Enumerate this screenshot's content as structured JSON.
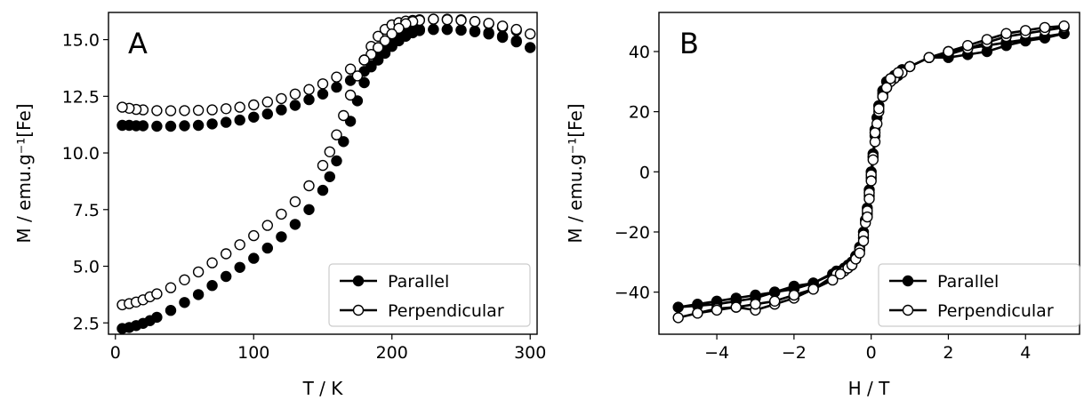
{
  "chart_data": [
    {
      "type": "scatter",
      "panel_label": "A",
      "xlabel": "T / K",
      "ylabel": "M / emu.g⁻¹[Fe]",
      "xlim": [
        -5,
        305
      ],
      "ylim": [
        2.0,
        16.2
      ],
      "xticks": [
        0,
        100,
        200,
        300
      ],
      "xtick_labels": [
        "0",
        "100",
        "200",
        "300"
      ],
      "yticks": [
        2.5,
        5.0,
        7.5,
        10.0,
        12.5,
        15.0
      ],
      "ytick_labels": [
        "2.5",
        "5.0",
        "7.5",
        "10.0",
        "12.5",
        "15.0"
      ],
      "legend": {
        "position": "lower-right",
        "entries": [
          "Parallel",
          "Perpendicular"
        ]
      },
      "series": [
        {
          "name": "Parallel",
          "marker": "filled",
          "x": [
            5,
            10,
            15,
            20,
            25,
            30,
            40,
            50,
            60,
            70,
            80,
            90,
            100,
            110,
            120,
            130,
            140,
            150,
            155,
            160,
            165,
            170,
            175,
            180,
            185,
            190,
            195,
            200,
            205,
            210,
            215,
            220,
            230,
            240,
            250,
            260,
            270,
            280,
            290,
            300,
            290,
            280,
            270,
            260,
            250,
            240,
            230,
            220,
            215,
            210,
            205,
            200,
            195,
            190,
            185,
            180,
            170,
            160,
            150,
            140,
            130,
            120,
            110,
            100,
            90,
            80,
            70,
            60,
            50,
            40,
            30,
            20,
            15,
            10,
            5
          ],
          "y": [
            2.25,
            2.3,
            2.38,
            2.48,
            2.6,
            2.75,
            3.05,
            3.4,
            3.75,
            4.15,
            4.55,
            4.95,
            5.35,
            5.8,
            6.3,
            6.85,
            7.5,
            8.35,
            8.95,
            9.65,
            10.5,
            11.4,
            12.3,
            13.1,
            13.8,
            14.35,
            14.8,
            15.1,
            15.3,
            15.4,
            15.45,
            15.45,
            15.45,
            15.45,
            15.42,
            15.35,
            15.25,
            15.1,
            14.9,
            14.65,
            14.95,
            15.15,
            15.3,
            15.38,
            15.42,
            15.45,
            15.45,
            15.4,
            15.3,
            15.15,
            14.95,
            14.7,
            14.4,
            14.1,
            13.85,
            13.6,
            13.2,
            12.9,
            12.6,
            12.35,
            12.1,
            11.9,
            11.72,
            11.58,
            11.45,
            11.35,
            11.28,
            11.22,
            11.2,
            11.18,
            11.18,
            11.2,
            11.2,
            11.22,
            11.22
          ]
        },
        {
          "name": "Perpendicular",
          "marker": "open",
          "x": [
            5,
            10,
            15,
            20,
            25,
            30,
            40,
            50,
            60,
            70,
            80,
            90,
            100,
            110,
            120,
            130,
            140,
            150,
            155,
            160,
            165,
            170,
            175,
            180,
            185,
            190,
            195,
            200,
            205,
            210,
            215,
            220,
            230,
            240,
            250,
            260,
            270,
            280,
            290,
            300,
            290,
            280,
            270,
            260,
            250,
            240,
            230,
            220,
            215,
            210,
            205,
            200,
            195,
            190,
            185,
            180,
            170,
            160,
            150,
            140,
            130,
            120,
            110,
            100,
            90,
            80,
            70,
            60,
            50,
            40,
            30,
            20,
            15,
            10,
            5
          ],
          "y": [
            3.3,
            3.35,
            3.42,
            3.52,
            3.65,
            3.78,
            4.05,
            4.4,
            4.75,
            5.15,
            5.55,
            5.95,
            6.35,
            6.8,
            7.3,
            7.85,
            8.55,
            9.45,
            10.05,
            10.8,
            11.65,
            12.55,
            13.4,
            14.1,
            14.7,
            15.15,
            15.45,
            15.65,
            15.75,
            15.82,
            15.85,
            15.88,
            15.9,
            15.9,
            15.88,
            15.8,
            15.7,
            15.55,
            15.4,
            15.25,
            15.45,
            15.6,
            15.72,
            15.8,
            15.85,
            15.88,
            15.9,
            15.85,
            15.8,
            15.7,
            15.5,
            15.25,
            14.95,
            14.65,
            14.35,
            14.1,
            13.7,
            13.35,
            13.05,
            12.8,
            12.6,
            12.4,
            12.25,
            12.12,
            12.02,
            11.95,
            11.9,
            11.88,
            11.87,
            11.86,
            11.87,
            11.9,
            11.92,
            11.97,
            12.02
          ]
        }
      ]
    },
    {
      "type": "line",
      "panel_label": "B",
      "xlabel": "H / T",
      "ylabel": "M / emu.g⁻¹[Fe]",
      "xlim": [
        -5.5,
        5.4
      ],
      "ylim": [
        -54,
        53
      ],
      "xticks": [
        -4,
        -2,
        0,
        2,
        4
      ],
      "xtick_labels": [
        "−4",
        "−2",
        "0",
        "2",
        "4"
      ],
      "yticks": [
        -40,
        -20,
        0,
        20,
        40
      ],
      "ytick_labels": [
        "−40",
        "−20",
        "0",
        "20",
        "40"
      ],
      "legend": {
        "position": "lower-right",
        "entries": [
          "Parallel",
          "Perpendicular"
        ]
      },
      "series": [
        {
          "name": "Parallel",
          "marker": "filled",
          "x": [
            5.0,
            4.5,
            4.0,
            3.5,
            3.0,
            2.5,
            2.0,
            1.5,
            1.0,
            0.8,
            0.6,
            0.5,
            0.4,
            0.3,
            0.2,
            0.15,
            0.1,
            0.05,
            0.0,
            -0.05,
            -0.1,
            -0.15,
            -0.2,
            -0.3,
            -0.4,
            -0.5,
            -0.7,
            -0.9,
            -1.5,
            -2.0,
            -2.5,
            -3.0,
            -3.5,
            -4.0,
            -4.5,
            -5.0,
            -4.5,
            -4.0,
            -3.5,
            -3.0,
            -2.5,
            -2.0,
            -1.5,
            -1.0,
            -0.8,
            -0.6,
            -0.5,
            -0.4,
            -0.3,
            -0.2,
            -0.1,
            -0.05,
            0.0,
            0.05,
            0.1,
            0.2,
            0.3,
            0.4,
            0.5,
            0.7,
            1.0,
            1.5,
            2.0,
            2.5,
            3.0,
            3.5,
            4.0,
            4.5,
            5.0
          ],
          "y": [
            46,
            44.5,
            43.5,
            42,
            40,
            39,
            38,
            38,
            35,
            34,
            32,
            31,
            30,
            27,
            22,
            18,
            12,
            6,
            0,
            -6,
            -12,
            -16,
            -20,
            -25,
            -28,
            -30,
            -32,
            -33,
            -37,
            -39,
            -40,
            -42,
            -43,
            -44,
            -44.5,
            -45,
            -44,
            -43,
            -42,
            -41,
            -40,
            -38,
            -37,
            -34,
            -33,
            -31,
            -30,
            -28,
            -26,
            -22,
            -14,
            -8,
            -2,
            5,
            14,
            22,
            26,
            28,
            30,
            32,
            35,
            38,
            39,
            41,
            42,
            43,
            44,
            45,
            46
          ]
        },
        {
          "name": "Perpendicular",
          "marker": "open",
          "x": [
            5.0,
            4.5,
            4.0,
            3.5,
            3.0,
            2.5,
            2.0,
            1.5,
            1.0,
            0.8,
            0.6,
            0.5,
            0.4,
            0.3,
            0.2,
            0.15,
            0.1,
            0.05,
            0.0,
            -0.05,
            -0.1,
            -0.15,
            -0.2,
            -0.3,
            -0.4,
            -0.5,
            -0.7,
            -0.9,
            -1.5,
            -2.0,
            -2.5,
            -3.0,
            -3.5,
            -4.0,
            -4.5,
            -5.0,
            -4.5,
            -4.0,
            -3.5,
            -3.0,
            -2.5,
            -2.0,
            -1.5,
            -1.0,
            -0.8,
            -0.6,
            -0.5,
            -0.4,
            -0.3,
            -0.2,
            -0.1,
            -0.05,
            0.0,
            0.05,
            0.1,
            0.2,
            0.3,
            0.4,
            0.5,
            0.7,
            1.0,
            1.5,
            2.0,
            2.5,
            3.0,
            3.5,
            4.0,
            4.5,
            5.0
          ],
          "y": [
            48,
            47,
            46,
            45,
            43,
            41,
            40,
            38,
            35,
            33,
            31,
            30,
            28,
            25,
            20,
            16,
            10,
            5,
            -1,
            -7,
            -13,
            -17,
            -21,
            -26,
            -29,
            -31,
            -33,
            -34,
            -39,
            -42,
            -44,
            -46,
            -45,
            -45.5,
            -47,
            -48.5,
            -47,
            -46,
            -45,
            -44,
            -43,
            -41,
            -39,
            -36,
            -34,
            -32,
            -31,
            -29,
            -27,
            -23,
            -15,
            -9,
            -3,
            4,
            13,
            21,
            25,
            28,
            31,
            33,
            35,
            38,
            40,
            42,
            44,
            46,
            47,
            48,
            48.5
          ]
        }
      ]
    }
  ]
}
